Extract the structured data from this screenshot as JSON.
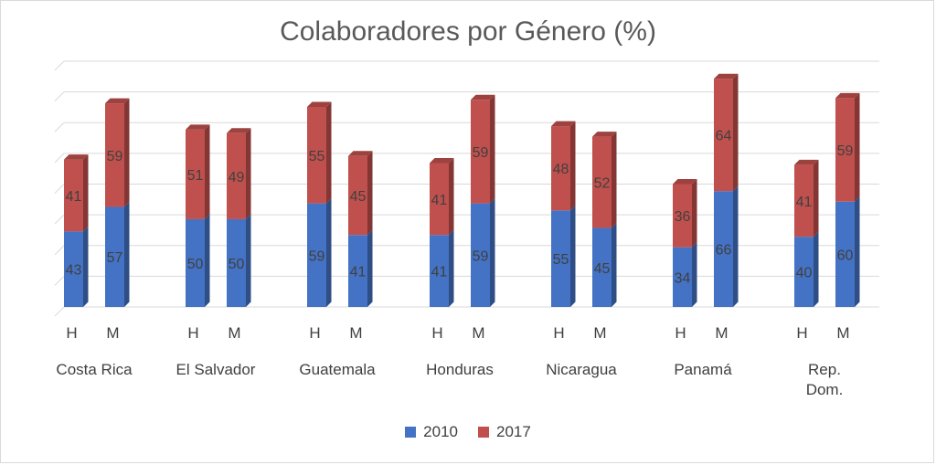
{
  "chart_data": {
    "type": "bar",
    "stacked": true,
    "title": "Colaboradores por Género (%)",
    "groups": [
      "Costa Rica",
      "El Salvador",
      "Guatemala",
      "Honduras",
      "Nicaragua",
      "Panamá",
      "Rep. Dom."
    ],
    "genders": [
      "H",
      "M"
    ],
    "series": [
      {
        "name": "2010",
        "color": "#4472c4",
        "values": [
          [
            43,
            57
          ],
          [
            50,
            50
          ],
          [
            59,
            41
          ],
          [
            41,
            59
          ],
          [
            55,
            45
          ],
          [
            34,
            66
          ],
          [
            40,
            60
          ]
        ]
      },
      {
        "name": "2017",
        "color": "#c0504d",
        "values": [
          [
            41,
            59
          ],
          [
            51,
            49
          ],
          [
            55,
            45
          ],
          [
            41,
            59
          ],
          [
            48,
            52
          ],
          [
            36,
            64
          ],
          [
            41,
            59
          ]
        ]
      }
    ],
    "ylim": [
      0,
      140
    ],
    "gridlines": 8,
    "legend_position": "bottom"
  }
}
